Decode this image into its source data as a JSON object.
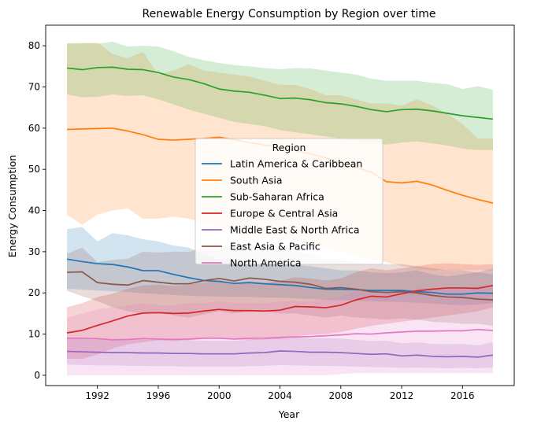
{
  "chart_data": {
    "type": "line",
    "title": "Renewable Energy Consumption by Region over time",
    "xlabel": "Year",
    "ylabel": "Energy Consumption",
    "xlim": [
      1988.6,
      2019.4
    ],
    "ylim": [
      -2.5,
      85
    ],
    "xticks": [
      1992,
      1996,
      2000,
      2004,
      2008,
      2012,
      2016
    ],
    "yticks": [
      0,
      10,
      20,
      30,
      40,
      50,
      60,
      70,
      80
    ],
    "grid": false,
    "legend": {
      "title": "Region",
      "placement": "center"
    },
    "x": [
      1990,
      1991,
      1992,
      1993,
      1994,
      1995,
      1996,
      1997,
      1998,
      1999,
      2000,
      2001,
      2002,
      2003,
      2004,
      2005,
      2006,
      2007,
      2008,
      2009,
      2010,
      2011,
      2012,
      2013,
      2014,
      2015,
      2016,
      2017,
      2018
    ],
    "series": [
      {
        "name": "Latin America & Caribbean",
        "color": "#1f77b4",
        "values": [
          28.2,
          27.6,
          27.1,
          26.9,
          26.3,
          25.4,
          25.4,
          24.5,
          23.7,
          23.0,
          22.8,
          22.3,
          22.5,
          22.2,
          22.0,
          21.8,
          21.3,
          20.9,
          20.9,
          20.8,
          20.6,
          20.6,
          20.6,
          20.3,
          20.1,
          19.7,
          19.7,
          20.0,
          19.9
        ],
        "lower": [
          21.0,
          20.8,
          20.6,
          20.4,
          20.2,
          19.9,
          19.7,
          19.5,
          19.3,
          19.2,
          19.1,
          19.0,
          19.0,
          18.9,
          18.8,
          18.7,
          18.5,
          18.3,
          18.2,
          18.1,
          18.0,
          17.9,
          17.8,
          17.6,
          17.4,
          17.2,
          17.0,
          17.2,
          17.5
        ],
        "upper": [
          35.5,
          36.0,
          32.5,
          34.5,
          34.0,
          33.0,
          32.5,
          31.5,
          31.0,
          29.5,
          28.0,
          27.8,
          27.5,
          27.2,
          27.0,
          26.8,
          26.5,
          26.0,
          25.5,
          25.5,
          25.0,
          24.8,
          25.0,
          25.5,
          24.5,
          24.0,
          24.5,
          25.0,
          26.0
        ]
      },
      {
        "name": "South Asia",
        "color": "#ff7f0e",
        "values": [
          59.7,
          59.8,
          59.9,
          60.0,
          59.3,
          58.4,
          57.3,
          57.1,
          57.3,
          57.5,
          57.8,
          57.2,
          56.5,
          55.9,
          55.3,
          54.5,
          53.8,
          52.8,
          51.5,
          50.5,
          49.3,
          47.0,
          46.7,
          47.1,
          46.2,
          44.9,
          43.7,
          42.7,
          41.8
        ],
        "lower": [
          39.0,
          36.5,
          39.0,
          40.0,
          40.5,
          38.0,
          38.0,
          38.5,
          38.0,
          37.0,
          36.0,
          35.0,
          34.0,
          33.5,
          33.0,
          32.5,
          32.0,
          31.0,
          30.0,
          29.0,
          28.0,
          27.5,
          26.5,
          26.0,
          25.5,
          25.5,
          25.5,
          25.5,
          25.5
        ],
        "upper": [
          80.5,
          80.5,
          80.8,
          78.0,
          77.0,
          78.5,
          73.0,
          74.0,
          75.5,
          74.0,
          73.5,
          73.0,
          72.5,
          71.5,
          70.5,
          70.5,
          69.5,
          68.0,
          68.0,
          67.0,
          66.0,
          66.0,
          65.5,
          67.0,
          65.5,
          63.5,
          61.0,
          57.5,
          57.5
        ]
      },
      {
        "name": "Sub-Saharan Africa",
        "color": "#2ca02c",
        "values": [
          74.6,
          74.2,
          74.7,
          74.8,
          74.3,
          74.2,
          73.5,
          72.4,
          71.8,
          70.8,
          69.5,
          69.0,
          68.7,
          68.0,
          67.2,
          67.3,
          66.9,
          66.2,
          65.9,
          65.3,
          64.5,
          64.0,
          64.5,
          64.6,
          64.2,
          63.6,
          63.0,
          62.6,
          62.2
        ],
        "lower": [
          68.2,
          67.5,
          67.6,
          68.2,
          67.8,
          68.0,
          67.0,
          65.8,
          64.5,
          63.5,
          62.5,
          61.5,
          61.0,
          60.5,
          59.5,
          59.0,
          58.5,
          58.0,
          57.5,
          57.0,
          56.3,
          56.0,
          56.5,
          56.8,
          56.3,
          55.8,
          55.0,
          54.7,
          54.7
        ],
        "upper": [
          80.6,
          80.7,
          80.5,
          81.0,
          79.8,
          80.0,
          79.8,
          78.7,
          77.3,
          76.5,
          75.8,
          75.3,
          75.0,
          74.6,
          74.3,
          74.6,
          74.5,
          74.0,
          73.5,
          73.0,
          72.0,
          71.5,
          71.5,
          71.5,
          71.0,
          70.7,
          69.5,
          70.2,
          69.3
        ]
      },
      {
        "name": "Europe & Central Asia",
        "color": "#d62728",
        "values": [
          10.3,
          10.9,
          12.1,
          13.2,
          14.4,
          15.1,
          15.2,
          15.0,
          15.1,
          15.6,
          16.0,
          15.7,
          15.7,
          15.6,
          15.8,
          16.7,
          16.6,
          16.4,
          17.0,
          18.3,
          19.2,
          19.0,
          19.8,
          20.5,
          20.9,
          21.2,
          21.2,
          21.1,
          21.8
        ],
        "lower": [
          4.0,
          4.0,
          5.0,
          6.5,
          7.5,
          8.0,
          8.5,
          8.3,
          8.5,
          8.8,
          9.0,
          8.7,
          8.5,
          8.7,
          8.8,
          9.5,
          9.8,
          10.0,
          10.5,
          11.3,
          12.0,
          12.5,
          13.0,
          13.5,
          14.0,
          14.5,
          15.0,
          15.5,
          16.5
        ],
        "upper": [
          16.5,
          17.5,
          19.0,
          19.8,
          21.0,
          21.8,
          22.0,
          21.7,
          22.0,
          22.5,
          23.0,
          22.5,
          22.8,
          22.5,
          23.0,
          23.8,
          23.5,
          23.0,
          23.5,
          25.0,
          26.0,
          25.5,
          26.0,
          26.5,
          27.0,
          27.2,
          27.0,
          26.8,
          27.0
        ]
      },
      {
        "name": "Middle East & North Africa",
        "color": "#9467bd",
        "values": [
          5.8,
          5.7,
          5.6,
          5.5,
          5.5,
          5.4,
          5.4,
          5.3,
          5.3,
          5.2,
          5.2,
          5.2,
          5.4,
          5.5,
          5.9,
          5.8,
          5.6,
          5.6,
          5.5,
          5.3,
          5.1,
          5.2,
          4.7,
          4.9,
          4.6,
          4.5,
          4.6,
          4.4,
          4.9
        ],
        "lower": [
          2.6,
          2.5,
          2.4,
          2.4,
          2.3,
          2.3,
          2.2,
          2.2,
          2.1,
          2.1,
          2.1,
          2.1,
          2.2,
          2.3,
          2.5,
          2.4,
          2.3,
          2.3,
          2.2,
          2.1,
          2.0,
          2.0,
          1.8,
          1.9,
          1.8,
          1.7,
          1.8,
          1.7,
          1.9
        ],
        "upper": [
          9.0,
          8.9,
          8.8,
          8.7,
          8.7,
          8.6,
          8.6,
          8.5,
          8.5,
          8.4,
          8.4,
          8.4,
          8.6,
          8.8,
          9.3,
          9.2,
          9.0,
          9.0,
          8.9,
          8.6,
          8.3,
          8.4,
          7.8,
          8.0,
          7.6,
          7.5,
          7.6,
          7.3,
          8.0
        ]
      },
      {
        "name": "East Asia & Pacific",
        "color": "#8c564b",
        "values": [
          25.0,
          25.1,
          22.5,
          22.1,
          21.9,
          23.0,
          22.6,
          22.2,
          22.2,
          23.0,
          23.5,
          22.9,
          23.6,
          23.3,
          22.8,
          22.6,
          22.1,
          21.1,
          21.3,
          20.9,
          20.3,
          20.1,
          20.3,
          20.0,
          19.4,
          19.0,
          18.9,
          18.5,
          18.3
        ],
        "lower": [
          20.5,
          19.2,
          18.0,
          16.5,
          15.5,
          15.0,
          15.5,
          14.5,
          14.0,
          14.8,
          15.5,
          15.0,
          15.5,
          15.5,
          15.0,
          15.0,
          14.5,
          14.0,
          14.5,
          14.0,
          13.8,
          13.5,
          13.8,
          13.5,
          13.0,
          12.8,
          12.5,
          12.5,
          12.0
        ],
        "upper": [
          29.5,
          31.0,
          27.5,
          28.0,
          28.3,
          30.0,
          29.8,
          30.0,
          30.0,
          31.0,
          31.5,
          30.5,
          31.5,
          31.0,
          30.5,
          30.0,
          29.5,
          28.0,
          28.0,
          27.5,
          27.0,
          27.0,
          27.0,
          26.5,
          26.0,
          25.5,
          25.5,
          25.0,
          24.5
        ]
      },
      {
        "name": "North America",
        "color": "#e377c2",
        "values": [
          9.0,
          9.0,
          8.9,
          8.6,
          8.7,
          8.9,
          8.8,
          8.7,
          8.8,
          9.0,
          9.0,
          8.8,
          9.0,
          9.0,
          9.2,
          9.3,
          9.4,
          9.6,
          9.8,
          10.1,
          10.0,
          10.3,
          10.5,
          10.7,
          10.7,
          10.8,
          10.8,
          11.1,
          10.9
        ],
        "lower": [
          0.0,
          0.0,
          0.0,
          0.0,
          0.0,
          0.0,
          0.0,
          0.0,
          0.0,
          0.0,
          0.0,
          0.0,
          0.0,
          0.0,
          0.0,
          0.0,
          0.0,
          0.0,
          0.3,
          0.5,
          0.5,
          0.5,
          0.5,
          0.5,
          0.5,
          0.5,
          0.5,
          0.5,
          0.5
        ],
        "upper": [
          14.0,
          15.0,
          16.0,
          16.5,
          17.0,
          17.5,
          17.0,
          17.0,
          17.5,
          17.5,
          18.0,
          17.5,
          17.5,
          17.5,
          18.0,
          18.0,
          18.0,
          18.5,
          19.0,
          20.5,
          20.0,
          20.5,
          20.5,
          21.0,
          21.0,
          21.0,
          21.0,
          21.5,
          21.5
        ]
      }
    ]
  }
}
